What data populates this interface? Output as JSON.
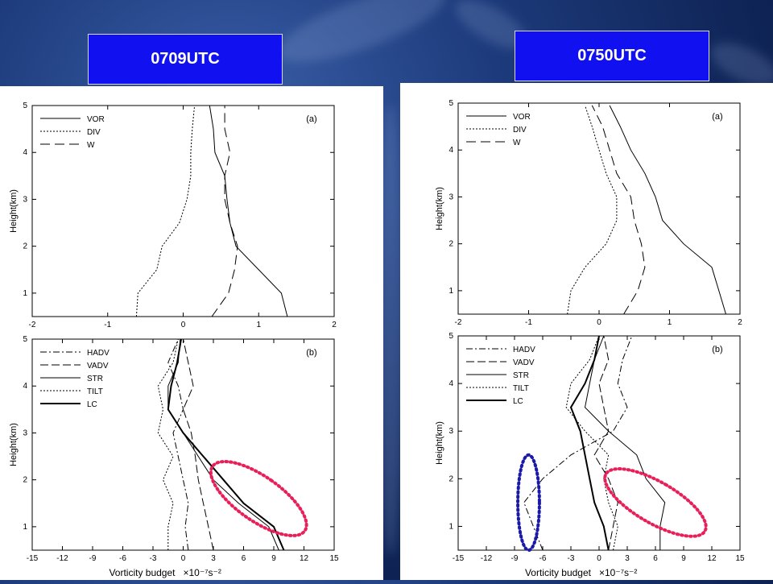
{
  "time_labels": {
    "left": "0709UTC",
    "right": "0750UTC"
  },
  "chart_data": [
    {
      "type": "line",
      "panel": "0709UTC-a",
      "tag": "(a)",
      "ylabel": "Height(km)",
      "xlabel": "",
      "xlim": [
        -2,
        2
      ],
      "ylim": [
        0.5,
        5
      ],
      "xticks": [
        -2,
        -1,
        0,
        1,
        2
      ],
      "yticks": [
        1,
        2,
        3,
        4,
        5
      ],
      "series": [
        {
          "name": "VOR",
          "style": "solid",
          "points": [
            [
              1.38,
              0.5
            ],
            [
              1.3,
              1.0
            ],
            [
              0.7,
              2.0
            ],
            [
              0.62,
              2.5
            ],
            [
              0.58,
              3.0
            ],
            [
              0.55,
              3.5
            ],
            [
              0.42,
              4.0
            ],
            [
              0.4,
              4.5
            ],
            [
              0.35,
              5.0
            ]
          ]
        },
        {
          "name": "DIV",
          "style": "dotted",
          "points": [
            [
              -0.62,
              0.5
            ],
            [
              -0.6,
              1.0
            ],
            [
              -0.35,
              1.5
            ],
            [
              -0.28,
              2.0
            ],
            [
              -0.05,
              2.5
            ],
            [
              0.05,
              3.0
            ],
            [
              0.1,
              3.5
            ],
            [
              0.1,
              4.0
            ],
            [
              0.12,
              4.5
            ],
            [
              0.15,
              5.0
            ]
          ]
        },
        {
          "name": "W",
          "style": "dashed",
          "points": [
            [
              0.38,
              0.5
            ],
            [
              0.6,
              1.0
            ],
            [
              0.68,
              1.5
            ],
            [
              0.72,
              2.0
            ],
            [
              0.62,
              2.5
            ],
            [
              0.55,
              3.0
            ],
            [
              0.55,
              3.5
            ],
            [
              0.62,
              4.0
            ],
            [
              0.55,
              4.5
            ],
            [
              0.55,
              5.0
            ]
          ]
        }
      ]
    },
    {
      "type": "line",
      "panel": "0709UTC-b",
      "tag": "(b)",
      "ylabel": "Height(km)",
      "xlabel": "Vorticity budget",
      "xunit": "×10⁻⁷s⁻²",
      "xlim": [
        -15,
        15
      ],
      "ylim": [
        0.5,
        5
      ],
      "xticks": [
        -15,
        -12,
        -9,
        -6,
        -3,
        0,
        3,
        6,
        9,
        12,
        15
      ],
      "yticks": [
        1,
        2,
        3,
        4,
        5
      ],
      "series": [
        {
          "name": "HADV",
          "style": "dashdot",
          "points": [
            [
              0.5,
              0.5
            ],
            [
              0.2,
              1.0
            ],
            [
              0.5,
              1.5
            ],
            [
              0.0,
              2.0
            ],
            [
              -0.5,
              2.5
            ],
            [
              -1.0,
              3.0
            ],
            [
              0.0,
              3.5
            ],
            [
              -0.5,
              4.0
            ],
            [
              -1.5,
              4.5
            ],
            [
              -0.5,
              5.0
            ]
          ]
        },
        {
          "name": "VADV",
          "style": "longdash",
          "points": [
            [
              3.0,
              0.5
            ],
            [
              2.5,
              1.0
            ],
            [
              2.0,
              1.5
            ],
            [
              1.5,
              2.0
            ],
            [
              1.2,
              2.5
            ],
            [
              0.8,
              3.0
            ],
            [
              0.0,
              3.5
            ],
            [
              1.0,
              4.0
            ],
            [
              0.5,
              4.5
            ],
            [
              0.0,
              5.0
            ]
          ]
        },
        {
          "name": "STR",
          "style": "solid",
          "points": [
            [
              9.5,
              0.5
            ],
            [
              8.5,
              1.0
            ],
            [
              5.5,
              1.5
            ],
            [
              3.0,
              2.0
            ],
            [
              1.5,
              2.5
            ],
            [
              0.0,
              3.0
            ],
            [
              -1.5,
              3.5
            ],
            [
              -1.5,
              4.0
            ],
            [
              -0.5,
              4.5
            ],
            [
              -0.3,
              5.0
            ]
          ]
        },
        {
          "name": "TILT",
          "style": "dotted",
          "points": [
            [
              -1.5,
              0.5
            ],
            [
              -1.5,
              1.0
            ],
            [
              -1.0,
              1.5
            ],
            [
              -2.0,
              2.0
            ],
            [
              -1.0,
              2.5
            ],
            [
              -2.5,
              3.0
            ],
            [
              -2.0,
              3.5
            ],
            [
              -2.5,
              4.0
            ],
            [
              -1.0,
              4.5
            ],
            [
              -0.5,
              5.0
            ]
          ]
        },
        {
          "name": "LC",
          "style": "bold",
          "points": [
            [
              10.0,
              0.5
            ],
            [
              9.0,
              1.0
            ],
            [
              6.0,
              1.5
            ],
            [
              4.0,
              2.0
            ],
            [
              2.0,
              2.5
            ],
            [
              0.0,
              3.0
            ],
            [
              -1.5,
              3.5
            ],
            [
              -1.2,
              4.0
            ],
            [
              -0.6,
              4.5
            ],
            [
              -0.2,
              5.0
            ]
          ]
        }
      ],
      "annotations": [
        {
          "shape": "ellipse",
          "color": "#e8205a",
          "cx": 7.5,
          "cy": 1.6,
          "rx": 2.2,
          "ry": 1.2,
          "angle_deg": -55
        }
      ]
    },
    {
      "type": "line",
      "panel": "0750UTC-a",
      "tag": "(a)",
      "ylabel": "Height(km)",
      "xlabel": "",
      "xlim": [
        -2,
        2
      ],
      "ylim": [
        0.5,
        5
      ],
      "xticks": [
        -2,
        -1,
        0,
        1,
        2
      ],
      "yticks": [
        1,
        2,
        3,
        4,
        5
      ],
      "series": [
        {
          "name": "VOR",
          "style": "solid",
          "points": [
            [
              1.8,
              0.5
            ],
            [
              1.7,
              1.0
            ],
            [
              1.6,
              1.5
            ],
            [
              1.2,
              2.0
            ],
            [
              0.9,
              2.5
            ],
            [
              0.8,
              3.0
            ],
            [
              0.65,
              3.5
            ],
            [
              0.45,
              4.0
            ],
            [
              0.3,
              4.5
            ],
            [
              0.15,
              4.95
            ]
          ]
        },
        {
          "name": "DIV",
          "style": "dotted",
          "points": [
            [
              -0.45,
              0.5
            ],
            [
              -0.4,
              1.0
            ],
            [
              -0.2,
              1.5
            ],
            [
              0.1,
              2.0
            ],
            [
              0.25,
              2.5
            ],
            [
              0.25,
              3.0
            ],
            [
              0.1,
              3.5
            ],
            [
              0.0,
              4.0
            ],
            [
              -0.1,
              4.5
            ],
            [
              -0.2,
              4.95
            ]
          ]
        },
        {
          "name": "W",
          "style": "dashed",
          "points": [
            [
              0.35,
              0.5
            ],
            [
              0.55,
              1.0
            ],
            [
              0.65,
              1.5
            ],
            [
              0.6,
              2.0
            ],
            [
              0.5,
              2.5
            ],
            [
              0.45,
              3.0
            ],
            [
              0.25,
              3.5
            ],
            [
              0.15,
              4.0
            ],
            [
              0.05,
              4.5
            ],
            [
              -0.1,
              4.95
            ]
          ]
        }
      ]
    },
    {
      "type": "line",
      "panel": "0750UTC-b",
      "tag": "(b)",
      "ylabel": "Height(km)",
      "xlabel": "Vorticity budget",
      "xunit": "×10⁻⁷s⁻²",
      "xlim": [
        -15,
        15
      ],
      "ylim": [
        0.5,
        5
      ],
      "xticks": [
        -15,
        -12,
        -9,
        -6,
        -3,
        0,
        3,
        6,
        9,
        12,
        15
      ],
      "yticks": [
        1,
        2,
        3,
        4,
        5
      ],
      "series": [
        {
          "name": "HADV",
          "style": "dashdot",
          "points": [
            [
              -6.0,
              0.5
            ],
            [
              -8.0,
              1.5
            ],
            [
              -6.0,
              2.0
            ],
            [
              -3.0,
              2.5
            ],
            [
              1.5,
              3.0
            ],
            [
              3.0,
              3.5
            ],
            [
              2.0,
              4.0
            ],
            [
              2.5,
              4.5
            ],
            [
              3.5,
              5.0
            ]
          ]
        },
        {
          "name": "VADV",
          "style": "longdash",
          "points": [
            [
              1.0,
              0.5
            ],
            [
              1.5,
              1.0
            ],
            [
              2.0,
              1.5
            ],
            [
              1.0,
              2.0
            ],
            [
              -0.5,
              2.5
            ],
            [
              1.0,
              3.0
            ],
            [
              0.5,
              3.5
            ],
            [
              0.0,
              4.0
            ],
            [
              1.0,
              4.5
            ],
            [
              0.5,
              5.0
            ]
          ]
        },
        {
          "name": "STR",
          "style": "solid",
          "points": [
            [
              6.5,
              0.5
            ],
            [
              6.5,
              1.0
            ],
            [
              7.0,
              1.5
            ],
            [
              5.0,
              2.0
            ],
            [
              4.0,
              2.5
            ],
            [
              1.0,
              3.0
            ],
            [
              -1.5,
              3.5
            ],
            [
              -1.0,
              4.0
            ],
            [
              -0.5,
              4.5
            ],
            [
              0.5,
              5.0
            ]
          ]
        },
        {
          "name": "TILT",
          "style": "dotted",
          "points": [
            [
              1.5,
              0.5
            ],
            [
              2.0,
              1.0
            ],
            [
              1.0,
              1.5
            ],
            [
              0.5,
              2.0
            ],
            [
              1.0,
              2.5
            ],
            [
              -1.5,
              3.0
            ],
            [
              -3.5,
              3.5
            ],
            [
              -3.0,
              4.0
            ],
            [
              -1.0,
              4.5
            ],
            [
              0.0,
              5.0
            ]
          ]
        },
        {
          "name": "LC",
          "style": "bold",
          "points": [
            [
              1.0,
              0.5
            ],
            [
              0.5,
              1.0
            ],
            [
              -0.5,
              1.5
            ],
            [
              -1.0,
              2.0
            ],
            [
              -1.5,
              2.5
            ],
            [
              -2.0,
              3.0
            ],
            [
              -3.0,
              3.5
            ],
            [
              -1.5,
              4.0
            ],
            [
              -0.5,
              4.5
            ],
            [
              0.0,
              5.0
            ]
          ]
        }
      ],
      "annotations": [
        {
          "shape": "ellipse",
          "color": "#e8205a",
          "cx": 6.0,
          "cy": 1.5,
          "rx": 2.2,
          "ry": 1.2,
          "angle_deg": -60
        },
        {
          "shape": "ellipse",
          "color": "#1a1aa8",
          "cx": -7.5,
          "cy": 1.5,
          "rx": 1.15,
          "ry": 1.0,
          "angle_deg": 0
        }
      ]
    }
  ]
}
